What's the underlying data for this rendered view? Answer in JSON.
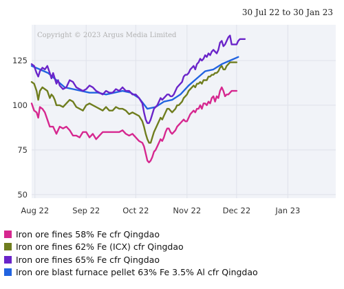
{
  "date_range": "30 Jul 22 to 30 Jan 23",
  "copyright": "Copyright © 2023 Argus Media Limited",
  "chart_data": {
    "type": "line",
    "x_ticks": [
      "Aug 22",
      "Sep 22",
      "Oct 22",
      "Nov 22",
      "Dec 22",
      "Jan 23"
    ],
    "y_ticks": [
      50,
      75,
      100,
      125
    ],
    "ylim": [
      48,
      145
    ],
    "grid": true,
    "legend_position": "bottom",
    "series": [
      {
        "name": "Iron ore fines 58% Fe cfr Qingdao",
        "color": "#d6278f",
        "points": [
          [
            0,
            101
          ],
          [
            1.5,
            97
          ],
          [
            3,
            96
          ],
          [
            4,
            93
          ],
          [
            5,
            99
          ],
          [
            6.5,
            98
          ],
          [
            8,
            96
          ],
          [
            9.5,
            92
          ],
          [
            11,
            88
          ],
          [
            13,
            88
          ],
          [
            15,
            84
          ],
          [
            17,
            88
          ],
          [
            19,
            87
          ],
          [
            21,
            88
          ],
          [
            23,
            86
          ],
          [
            25,
            83
          ],
          [
            27,
            83
          ],
          [
            29,
            82
          ],
          [
            31,
            85
          ],
          [
            33,
            85
          ],
          [
            35,
            82
          ],
          [
            37,
            84
          ],
          [
            39,
            81
          ],
          [
            41,
            83
          ],
          [
            43,
            85
          ],
          [
            45,
            85
          ],
          [
            47,
            85
          ],
          [
            49,
            85
          ],
          [
            51,
            85
          ],
          [
            53,
            85
          ],
          [
            55,
            86
          ],
          [
            57,
            84
          ],
          [
            59,
            83
          ],
          [
            61,
            84
          ],
          [
            63,
            82
          ],
          [
            65,
            80
          ],
          [
            67,
            79
          ],
          [
            68,
            77
          ],
          [
            69,
            73
          ],
          [
            70,
            69
          ],
          [
            71,
            68
          ],
          [
            72,
            69
          ],
          [
            73,
            71
          ],
          [
            74,
            74
          ],
          [
            75,
            75
          ],
          [
            76,
            77
          ],
          [
            77,
            79
          ],
          [
            78,
            81
          ],
          [
            79,
            80
          ],
          [
            80,
            82
          ],
          [
            81,
            85
          ],
          [
            82,
            87
          ],
          [
            83,
            87
          ],
          [
            84,
            85
          ],
          [
            85,
            84
          ],
          [
            86,
            85
          ],
          [
            87,
            86
          ],
          [
            88,
            88
          ],
          [
            89,
            89
          ],
          [
            90,
            90
          ],
          [
            91,
            91
          ],
          [
            92,
            92
          ],
          [
            93,
            91
          ],
          [
            94,
            91
          ],
          [
            95,
            93
          ],
          [
            96,
            95
          ],
          [
            97,
            96
          ],
          [
            98,
            97
          ],
          [
            99,
            96
          ],
          [
            100,
            98
          ],
          [
            101,
            98
          ],
          [
            102,
            100
          ],
          [
            103,
            98
          ],
          [
            104,
            101
          ],
          [
            105,
            101
          ],
          [
            106,
            100
          ],
          [
            107,
            102
          ],
          [
            108,
            101
          ],
          [
            109,
            104
          ],
          [
            110,
            105
          ],
          [
            111,
            102
          ],
          [
            112,
            105
          ],
          [
            113,
            104
          ],
          [
            114,
            108
          ],
          [
            115,
            110
          ],
          [
            116,
            108
          ],
          [
            117,
            105
          ],
          [
            118,
            106
          ],
          [
            119,
            106
          ],
          [
            120,
            107
          ],
          [
            121,
            108
          ],
          [
            122,
            108
          ],
          [
            123,
            108
          ],
          [
            124,
            108
          ]
        ]
      },
      {
        "name": "Iron ore fines 62% Fe (ICX) cfr Qingdao",
        "color": "#6f7d1e",
        "points": [
          [
            0,
            113
          ],
          [
            1.5,
            112
          ],
          [
            3,
            108
          ],
          [
            4,
            103
          ],
          [
            5,
            108
          ],
          [
            6.5,
            110
          ],
          [
            8,
            109
          ],
          [
            9.5,
            108
          ],
          [
            11,
            104
          ],
          [
            12,
            106
          ],
          [
            13,
            105
          ],
          [
            14,
            103
          ],
          [
            15,
            100
          ],
          [
            17,
            100
          ],
          [
            19,
            99
          ],
          [
            21,
            101
          ],
          [
            23,
            103
          ],
          [
            25,
            102
          ],
          [
            27,
            99
          ],
          [
            29,
            98
          ],
          [
            31,
            97
          ],
          [
            33,
            100
          ],
          [
            35,
            101
          ],
          [
            37,
            100
          ],
          [
            39,
            99
          ],
          [
            41,
            98
          ],
          [
            43,
            97
          ],
          [
            45,
            99
          ],
          [
            47,
            97
          ],
          [
            49,
            97
          ],
          [
            51,
            99
          ],
          [
            53,
            98
          ],
          [
            55,
            98
          ],
          [
            57,
            97
          ],
          [
            59,
            95
          ],
          [
            61,
            96
          ],
          [
            63,
            95
          ],
          [
            65,
            94
          ],
          [
            67,
            91
          ],
          [
            68,
            88
          ],
          [
            69,
            84
          ],
          [
            70,
            81
          ],
          [
            71,
            79
          ],
          [
            72,
            79
          ],
          [
            73,
            82
          ],
          [
            74,
            85
          ],
          [
            75,
            87
          ],
          [
            76,
            89
          ],
          [
            77,
            91
          ],
          [
            78,
            93
          ],
          [
            79,
            92
          ],
          [
            80,
            94
          ],
          [
            81,
            96
          ],
          [
            82,
            98
          ],
          [
            83,
            98
          ],
          [
            84,
            97
          ],
          [
            85,
            96
          ],
          [
            86,
            97
          ],
          [
            87,
            98
          ],
          [
            88,
            100
          ],
          [
            89,
            100
          ],
          [
            90,
            101
          ],
          [
            91,
            102
          ],
          [
            92,
            104
          ],
          [
            93,
            105
          ],
          [
            94,
            106
          ],
          [
            95,
            108
          ],
          [
            96,
            109
          ],
          [
            97,
            110
          ],
          [
            98,
            111
          ],
          [
            99,
            110
          ],
          [
            100,
            112
          ],
          [
            101,
            112
          ],
          [
            102,
            113
          ],
          [
            103,
            112
          ],
          [
            104,
            114
          ],
          [
            105,
            114
          ],
          [
            106,
            114
          ],
          [
            107,
            116
          ],
          [
            108,
            116
          ],
          [
            109,
            117
          ],
          [
            110,
            117
          ],
          [
            111,
            118
          ],
          [
            112,
            118
          ],
          [
            113,
            119
          ],
          [
            114,
            121
          ],
          [
            115,
            122
          ],
          [
            116,
            120
          ],
          [
            117,
            120
          ],
          [
            118,
            122
          ],
          [
            119,
            123
          ],
          [
            120,
            124
          ],
          [
            121,
            124
          ],
          [
            122,
            124
          ],
          [
            123,
            124
          ],
          [
            124,
            124
          ]
        ]
      },
      {
        "name": "Iron ore fines 65% Fe cfr Qingdao",
        "color": "#6a24c9",
        "points": [
          [
            0,
            123
          ],
          [
            1.5,
            122
          ],
          [
            3,
            118
          ],
          [
            4,
            116
          ],
          [
            5,
            119
          ],
          [
            6.5,
            121
          ],
          [
            8,
            120
          ],
          [
            9.5,
            122
          ],
          [
            11,
            118
          ],
          [
            12,
            115
          ],
          [
            13,
            118
          ],
          [
            14,
            115
          ],
          [
            15,
            112
          ],
          [
            16,
            114
          ],
          [
            17,
            111
          ],
          [
            19,
            109
          ],
          [
            21,
            110
          ],
          [
            23,
            114
          ],
          [
            25,
            113
          ],
          [
            27,
            110
          ],
          [
            29,
            109
          ],
          [
            31,
            108
          ],
          [
            33,
            109
          ],
          [
            35,
            111
          ],
          [
            37,
            110
          ],
          [
            39,
            108
          ],
          [
            41,
            107
          ],
          [
            43,
            106
          ],
          [
            45,
            108
          ],
          [
            47,
            107
          ],
          [
            49,
            107
          ],
          [
            51,
            109
          ],
          [
            53,
            108
          ],
          [
            55,
            110
          ],
          [
            57,
            108
          ],
          [
            59,
            108
          ],
          [
            61,
            106
          ],
          [
            63,
            106
          ],
          [
            65,
            104
          ],
          [
            67,
            101
          ],
          [
            68,
            96
          ],
          [
            69,
            92
          ],
          [
            70,
            90
          ],
          [
            71,
            90
          ],
          [
            72,
            92
          ],
          [
            73,
            95
          ],
          [
            74,
            98
          ],
          [
            75,
            99
          ],
          [
            76,
            100
          ],
          [
            77,
            102
          ],
          [
            78,
            104
          ],
          [
            79,
            103
          ],
          [
            80,
            104
          ],
          [
            81,
            105
          ],
          [
            82,
            106
          ],
          [
            83,
            106
          ],
          [
            84,
            105
          ],
          [
            85,
            105
          ],
          [
            86,
            106
          ],
          [
            87,
            108
          ],
          [
            88,
            110
          ],
          [
            89,
            111
          ],
          [
            90,
            112
          ],
          [
            91,
            113
          ],
          [
            92,
            116
          ],
          [
            93,
            117
          ],
          [
            94,
            117
          ],
          [
            95,
            118
          ],
          [
            96,
            120
          ],
          [
            97,
            121
          ],
          [
            98,
            122
          ],
          [
            99,
            120
          ],
          [
            100,
            123
          ],
          [
            101,
            124
          ],
          [
            102,
            126
          ],
          [
            103,
            125
          ],
          [
            104,
            126
          ],
          [
            105,
            128
          ],
          [
            106,
            127
          ],
          [
            107,
            129
          ],
          [
            108,
            128
          ],
          [
            109,
            130
          ],
          [
            110,
            131
          ],
          [
            111,
            130
          ],
          [
            112,
            129
          ],
          [
            113,
            131
          ],
          [
            114,
            135
          ],
          [
            115,
            136
          ],
          [
            116,
            133
          ],
          [
            117,
            134
          ],
          [
            118,
            136
          ],
          [
            119,
            138
          ],
          [
            120,
            139
          ],
          [
            121,
            134
          ],
          [
            122,
            134
          ],
          [
            123,
            134
          ],
          [
            124,
            134
          ],
          [
            125,
            136
          ],
          [
            126,
            137
          ],
          [
            127,
            137
          ],
          [
            128,
            137
          ],
          [
            129,
            137
          ]
        ]
      },
      {
        "name": "Iron ore blast furnace pellet 63% Fe 3.5% Al cfr Qingdao",
        "color": "#2163e0",
        "points": [
          [
            0,
            122
          ],
          [
            5,
            120
          ],
          [
            10,
            118
          ],
          [
            15,
            114
          ],
          [
            20,
            110
          ],
          [
            25,
            109
          ],
          [
            30,
            108
          ],
          [
            35,
            107
          ],
          [
            40,
            107
          ],
          [
            45,
            106
          ],
          [
            50,
            107
          ],
          [
            55,
            108
          ],
          [
            60,
            107
          ],
          [
            65,
            104
          ],
          [
            70,
            98
          ],
          [
            75,
            99
          ],
          [
            80,
            102
          ],
          [
            85,
            103
          ],
          [
            90,
            106
          ],
          [
            95,
            111
          ],
          [
            100,
            115
          ],
          [
            105,
            119
          ],
          [
            110,
            120
          ],
          [
            115,
            123
          ],
          [
            120,
            125
          ],
          [
            125,
            127
          ]
        ]
      }
    ]
  }
}
